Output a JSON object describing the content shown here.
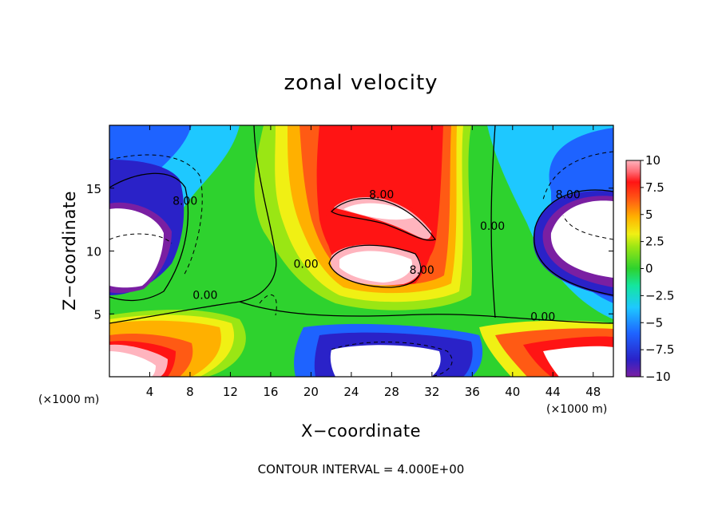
{
  "chart_data": {
    "type": "heatmap",
    "title": "zonal velocity",
    "xlabel": "X−coordinate",
    "ylabel": "Z−coordinate",
    "x_unit_left": "(×1000 m)",
    "x_unit_right": "(×1000 m)",
    "xlim": [
      0,
      50
    ],
    "ylim": [
      0,
      20
    ],
    "x_ticks": [
      4,
      8,
      12,
      16,
      20,
      24,
      28,
      32,
      36,
      40,
      44,
      48
    ],
    "x_tick_labels": [
      "4",
      "8",
      "12",
      "16",
      "20",
      "24",
      "28",
      "32",
      "36",
      "40",
      "44",
      "48"
    ],
    "y_ticks": [
      5,
      10,
      15
    ],
    "y_tick_labels": [
      "5",
      "10",
      "15"
    ],
    "colorbar": {
      "min": -10,
      "max": 10,
      "ticks": [
        10,
        7.5,
        5,
        2.5,
        0,
        -2.5,
        -5,
        -7.5,
        -10
      ],
      "tick_labels": [
        "10",
        "7.5",
        "5",
        "2.5",
        "0",
        "−2.5",
        "−5",
        "−7.5",
        "−10"
      ]
    },
    "contour_labels": [
      {
        "text": "8.00",
        "x": 27,
        "z": 14.5
      },
      {
        "text": "8.00",
        "x": 31,
        "z": 8.5
      },
      {
        "text": "8.00",
        "x": 7.5,
        "z": 14.0
      },
      {
        "text": "8.00",
        "x": 45.5,
        "z": 14.5
      },
      {
        "text": "0.00",
        "x": 9.5,
        "z": 6.5
      },
      {
        "text": "0.00",
        "x": 19.5,
        "z": 9.0
      },
      {
        "text": "0.00",
        "x": 38,
        "z": 12.0
      },
      {
        "text": "0.00",
        "x": 43,
        "z": 4.8
      }
    ],
    "note": "CONTOUR INTERVAL = 4.000E+00"
  }
}
